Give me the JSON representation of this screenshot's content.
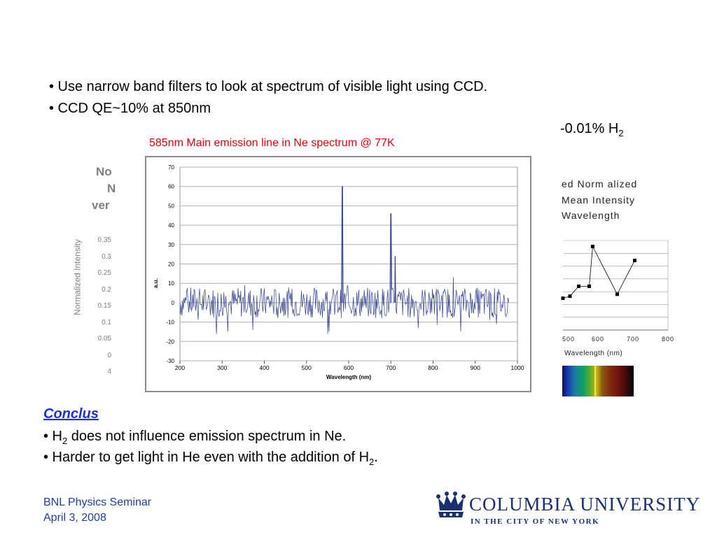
{
  "bullets_top": [
    "• Use narrow band filters to look at spectrum of visible light using CCD.",
    "• CCD QE~10% at 850nm"
  ],
  "right_label": {
    "prefix": "-0.01% H",
    "sub": "2"
  },
  "caption": "585nm Main emission line in Ne spectrum @ 77K",
  "left_behind": {
    "title_lines": [
      "No",
      "N",
      "ver"
    ],
    "ylabel": "Normalized Intensity",
    "yticks": [
      "0.35",
      "0.3",
      "0.25",
      "0.2",
      "0.15",
      "0.1",
      "0.05",
      "0",
      "4"
    ]
  },
  "conclusion": {
    "heading": "Conclus",
    "line1": {
      "pre": "• H",
      "sub": "2",
      "post": " does not influence emission spectrum in Ne."
    },
    "line2": {
      "pre": "• Harder to get light in He even with the addition of H",
      "sub": "2",
      "post": "."
    }
  },
  "footer": {
    "line1": "BNL Physics Seminar",
    "line2": "April 3, 2008"
  },
  "logo": {
    "name": "COLUMBIA UNIVERSITY",
    "sub": "IN THE CITY OF NEW YORK"
  },
  "chart_data": [
    {
      "type": "line",
      "xlabel": "Wavelength (nm)",
      "ylabel": "a.u.",
      "xlim": [
        200,
        1000
      ],
      "ylim": [
        -30,
        70
      ],
      "xticks": [
        200,
        300,
        400,
        500,
        600,
        700,
        800,
        900,
        1000
      ],
      "yticks": [
        -30,
        -20,
        -10,
        0,
        10,
        20,
        30,
        40,
        50,
        60,
        70
      ],
      "grid": true,
      "trace_range": [
        200,
        980
      ],
      "peaks": [
        {
          "x": 585,
          "y": 60
        },
        {
          "x": 700,
          "y": 46
        },
        {
          "x": 710,
          "y": 24
        }
      ],
      "noise_amplitude": 8,
      "color": "#2f3f8f"
    },
    {
      "type": "line",
      "title_lines": [
        "ed Norm alized",
        "Mean Intensity",
        "Wavelength"
      ],
      "xlabel": "Wavelength (nm)",
      "xlim": [
        500,
        800
      ],
      "xticks": [
        "500",
        "600",
        "700",
        "800"
      ],
      "grid": true,
      "x": [
        500,
        520,
        545,
        575,
        585,
        655,
        705
      ],
      "y": [
        0.16,
        0.17,
        0.22,
        0.22,
        0.42,
        0.18,
        0.35
      ],
      "color": "#000000"
    }
  ]
}
